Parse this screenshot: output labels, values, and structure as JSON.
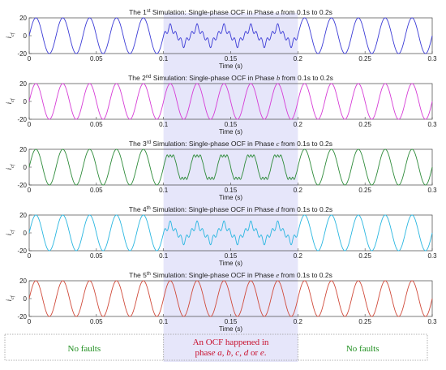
{
  "colors": {
    "phase_a": "#3b3bd6",
    "phase_b": "#d63cd6",
    "phase_c": "#2e8b3a",
    "phase_d": "#29b6e0",
    "phase_e": "#d04a3a",
    "fault_region": "#e6e6fa",
    "note_green": "#1f8f1f",
    "note_red": "#c8102e"
  },
  "notes": {
    "left": "No faults",
    "middle_line1": "An OCF happened in",
    "middle_line2": "phase a, b, c, d or e.",
    "right": "No faults"
  },
  "chart_data": [
    {
      "type": "line",
      "title": "The 1st Simulation: Single-phase OCF in Phase a from 0.1s to 0.2s",
      "title_parts": [
        "The 1",
        "st",
        " Simulation: Single-phase OCF in Phase ",
        "a",
        " from 0.1s to 0.2s"
      ],
      "xlabel": "Time (s)",
      "ylabel": "i_cf",
      "xlim": [
        0,
        0.3
      ],
      "ylim": [
        -20,
        20
      ],
      "xticks": [
        "0",
        "0.05",
        "0.1",
        "0.15",
        "0.2",
        "0.25",
        "0.3"
      ],
      "yticks": [
        "20",
        "0",
        "-20"
      ],
      "fault_window": [
        0.1,
        0.2
      ],
      "series": [
        {
          "name": "",
          "amplitude": 20,
          "frequency_hz": 50,
          "fault_shape": "ripple"
        }
      ]
    },
    {
      "type": "line",
      "title": "The 2nd Simulation: Single-phase OCF in Phase b from 0.1s to 0.2s",
      "title_parts": [
        "The 2",
        "nd",
        " Simulation: Single-phase OCF in Phase ",
        "b",
        " from 0.1s to 0.2s"
      ],
      "xlabel": "Time (s)",
      "ylabel": "i_cf",
      "xlim": [
        0,
        0.3
      ],
      "ylim": [
        -20,
        20
      ],
      "xticks": [
        "0",
        "0.05",
        "0.1",
        "0.15",
        "0.2",
        "0.25",
        "0.3"
      ],
      "yticks": [
        "20",
        "0",
        "-20"
      ],
      "fault_window": [
        0.1,
        0.2
      ],
      "series": [
        {
          "name": "",
          "amplitude": 20,
          "frequency_hz": 50,
          "fault_shape": "sine"
        }
      ]
    },
    {
      "type": "line",
      "title": "The 3rd Simulation: Single-phase OCF in Phase c from 0.1s to 0.2s",
      "title_parts": [
        "The 3",
        "rd",
        " Simulation: Single-phase OCF in Phase ",
        "c",
        " from 0.1s to 0.2s"
      ],
      "xlabel": "Time (s)",
      "ylabel": "i_cf",
      "xlim": [
        0,
        0.3
      ],
      "ylim": [
        -20,
        20
      ],
      "xticks": [
        "0",
        "0.05",
        "0.1",
        "0.15",
        "0.2",
        "0.25",
        "0.3"
      ],
      "yticks": [
        "20",
        "0",
        "-20"
      ],
      "fault_window": [
        0.1,
        0.2
      ],
      "series": [
        {
          "name": "",
          "amplitude": 20,
          "frequency_hz": 50,
          "fault_shape": "flattop"
        }
      ]
    },
    {
      "type": "line",
      "title": "The 4th Simulation: Single-phase OCF in Phase d from 0.1s to 0.2s",
      "title_parts": [
        "The 4",
        "th",
        " Simulation: Single-phase OCF in Phase ",
        "d",
        " from 0.1s to 0.2s"
      ],
      "xlabel": "Time (s)",
      "ylabel": "i_cf",
      "xlim": [
        0,
        0.3
      ],
      "ylim": [
        -20,
        20
      ],
      "xticks": [
        "0",
        "0.05",
        "0.1",
        "0.15",
        "0.2",
        "0.25",
        "0.3"
      ],
      "yticks": [
        "20",
        "0",
        "-20"
      ],
      "fault_window": [
        0.1,
        0.2
      ],
      "series": [
        {
          "name": "",
          "amplitude": 20,
          "frequency_hz": 50,
          "fault_shape": "ripple"
        }
      ]
    },
    {
      "type": "line",
      "title": "The 5th Simulation: Single-phase OCF in Phase e from 0.1s to 0.2s",
      "title_parts": [
        "The 5",
        "th",
        " Simulation: Single-phase OCF in Phase ",
        "e",
        " from 0.1s to 0.2s"
      ],
      "xlabel": "Time (s)",
      "ylabel": "i_cf",
      "xlim": [
        0,
        0.3
      ],
      "ylim": [
        -20,
        20
      ],
      "xticks": [
        "0",
        "0.05",
        "0.1",
        "0.15",
        "0.2",
        "0.25",
        "0.3"
      ],
      "yticks": [
        "20",
        "0",
        "-20"
      ],
      "fault_window": [
        0.1,
        0.2
      ],
      "series": [
        {
          "name": "",
          "amplitude": 20,
          "frequency_hz": 50,
          "fault_shape": "sine"
        }
      ]
    }
  ]
}
